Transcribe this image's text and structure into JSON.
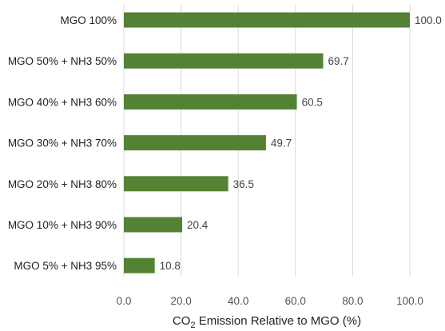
{
  "chart_data": {
    "type": "bar",
    "orientation": "horizontal",
    "categories": [
      "MGO 100%",
      "MGO 50% + NH3 50%",
      "MGO 40% + NH3 60%",
      "MGO 30% + NH3 70%",
      "MGO 20% + NH3 80%",
      "MGO 10% + NH3 90%",
      "MGO 5% + NH3 95%"
    ],
    "values": [
      100.0,
      69.7,
      60.5,
      49.7,
      36.5,
      20.4,
      10.8
    ],
    "value_labels": [
      "100.0",
      "69.7",
      "60.5",
      "49.7",
      "36.5",
      "20.4",
      "10.8"
    ],
    "x_ticks": [
      "0.0",
      "20.0",
      "40.0",
      "60.0",
      "80.0",
      "100.0"
    ],
    "xlim": [
      0,
      100
    ],
    "xlabel": {
      "prefix": "CO",
      "subscript": "2",
      "suffix": " Emission Relative to MGO (%)"
    },
    "ylabel": "",
    "title": "",
    "grid": "vertical",
    "legend": "none",
    "bar_color": "#548235"
  }
}
